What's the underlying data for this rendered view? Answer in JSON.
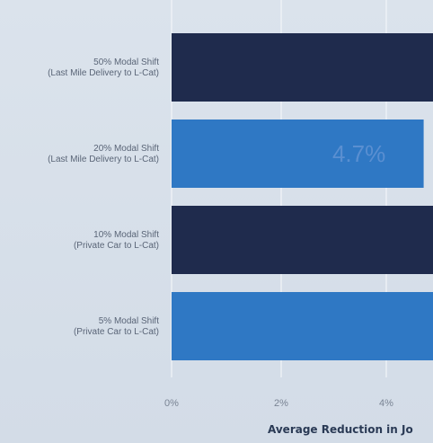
{
  "chart_data": {
    "type": "bar",
    "orientation": "horizontal",
    "categories": [
      [
        "50% Modal Shift",
        "(Last Mile Delivery to L-Cat)"
      ],
      [
        "20% Modal Shift",
        "(Last Mile Delivery to L-Cat)"
      ],
      [
        "10% Modal Shift",
        "(Private Car to L-Cat)"
      ],
      [
        "5% Modal Shift",
        "(Private Car to L-Cat)"
      ]
    ],
    "values": [
      5.0,
      4.7,
      5.0,
      5.0
    ],
    "data_labels": [
      "",
      "4.7%",
      "",
      ""
    ],
    "x_ticks": [
      "0%",
      "2%",
      "4%"
    ],
    "xlabel": "Average Reduction in Jo",
    "xlim": [
      0,
      5
    ],
    "grid": true,
    "colors": {
      "dark_bar": "#1f2b4d",
      "light_bar": "#2f78c4",
      "grid": "#f2f5f9"
    },
    "bar_color_keys": [
      "dark_bar",
      "light_bar",
      "dark_bar",
      "light_bar"
    ]
  }
}
